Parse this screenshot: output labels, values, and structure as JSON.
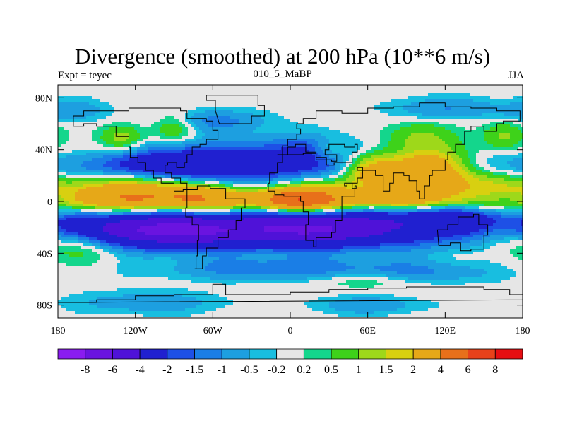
{
  "chart_data": {
    "type": "heatmap",
    "title": "Divergence (smoothed) at 200 hPa (10**6 m/s)",
    "subtitle_left": "Expt = teyec",
    "subtitle_center": "010_5_MaBP",
    "subtitle_right": "JJA",
    "x_axis": {
      "range": [
        -180,
        180
      ],
      "ticks": [
        {
          "value": -180,
          "label": "180"
        },
        {
          "value": -120,
          "label": "120W"
        },
        {
          "value": -60,
          "label": "60W"
        },
        {
          "value": 0,
          "label": "0"
        },
        {
          "value": 60,
          "label": "60E"
        },
        {
          "value": 120,
          "label": "120E"
        },
        {
          "value": 180,
          "label": "180"
        }
      ]
    },
    "y_axis": {
      "range": [
        -90,
        90
      ],
      "ticks": [
        {
          "value": 80,
          "label": "80N"
        },
        {
          "value": 40,
          "label": "40N"
        },
        {
          "value": 0,
          "label": "0"
        },
        {
          "value": -40,
          "label": "40S"
        },
        {
          "value": -80,
          "label": "80S"
        }
      ]
    },
    "colorbar": {
      "levels": [
        "-8",
        "-6",
        "-4",
        "-2",
        "-1.5",
        "-1",
        "-0.5",
        "-0.2",
        "0.2",
        "0.5",
        "1",
        "1.5",
        "2",
        "4",
        "6",
        "8"
      ],
      "colors": [
        "#8a1cf0",
        "#6a14e0",
        "#4f12d8",
        "#2020d0",
        "#1e50e6",
        "#1a7ee6",
        "#1d9fe0",
        "#18bee0",
        "#e6e6e6",
        "#14d68c",
        "#3ed21a",
        "#9ed81a",
        "#d8d010",
        "#e6a818",
        "#e8701a",
        "#e8421a",
        "#e60e12"
      ]
    },
    "fields": {
      "description_note": "",
      "features": [
        {
          "lon": -10,
          "lat": 0,
          "sx": 180,
          "sy": 6,
          "amp": 2.4
        },
        {
          "lon": -150,
          "lat": 8,
          "sx": 40,
          "sy": 10,
          "amp": 1.6
        },
        {
          "lon": -105,
          "lat": 10,
          "sx": 35,
          "sy": 9,
          "amp": 1.8
        },
        {
          "lon": -75,
          "lat": 4,
          "sx": 20,
          "sy": 8,
          "amp": 1.4
        },
        {
          "lon": 0,
          "lat": 2,
          "sx": 18,
          "sy": 7,
          "amp": 3.5
        },
        {
          "lon": 85,
          "lat": 20,
          "sx": 25,
          "sy": 12,
          "amp": 3.0
        },
        {
          "lon": 110,
          "lat": 25,
          "sx": 20,
          "sy": 10,
          "amp": 2.6
        },
        {
          "lon": 60,
          "lat": 25,
          "sx": 15,
          "sy": 8,
          "amp": 2.2
        },
        {
          "lon": 140,
          "lat": 15,
          "sx": 25,
          "sy": 10,
          "amp": 1.4
        },
        {
          "lon": 30,
          "lat": 5,
          "sx": 20,
          "sy": 10,
          "amp": 1.6
        },
        {
          "lon": -130,
          "lat": 48,
          "sx": 12,
          "sy": 8,
          "amp": 1.5
        },
        {
          "lon": 30,
          "lat": 40,
          "sx": 10,
          "sy": 6,
          "amp": 1.3
        },
        {
          "lon": 100,
          "lat": 50,
          "sx": 18,
          "sy": 8,
          "amp": 1.1
        },
        {
          "lon": 165,
          "lat": 50,
          "sx": 12,
          "sy": 8,
          "amp": 1.2
        },
        {
          "lon": -90,
          "lat": 58,
          "sx": 12,
          "sy": 8,
          "amp": 1.2
        },
        {
          "lon": -160,
          "lat": -30,
          "sx": 25,
          "sy": 10,
          "amp": 1.6
        },
        {
          "lon": 165,
          "lat": -25,
          "sx": 20,
          "sy": 10,
          "amp": 1.0
        },
        {
          "lon": 60,
          "lat": -60,
          "sx": 30,
          "sy": 5,
          "amp": 0.8
        },
        {
          "lon": -10,
          "lat": 25,
          "sx": 160,
          "sy": 8,
          "amp": -1.8
        },
        {
          "lon": -80,
          "lat": 30,
          "sx": 40,
          "sy": 10,
          "amp": -2.6
        },
        {
          "lon": 10,
          "lat": 40,
          "sx": 35,
          "sy": 8,
          "amp": -1.8
        },
        {
          "lon": -20,
          "lat": -22,
          "sx": 170,
          "sy": 10,
          "amp": -3.0
        },
        {
          "lon": -100,
          "lat": -22,
          "sx": 50,
          "sy": 9,
          "amp": -4.0
        },
        {
          "lon": 20,
          "lat": -20,
          "sx": 40,
          "sy": 10,
          "amp": -3.2
        },
        {
          "lon": 120,
          "lat": -12,
          "sx": 40,
          "sy": 7,
          "amp": -2.2
        },
        {
          "lon": 165,
          "lat": 2,
          "sx": 20,
          "sy": 5,
          "amp": -1.6
        },
        {
          "lon": -60,
          "lat": 62,
          "sx": 30,
          "sy": 6,
          "amp": -1.2
        },
        {
          "lon": -10,
          "lat": -52,
          "sx": 60,
          "sy": 6,
          "amp": -1.4
        },
        {
          "lon": 100,
          "lat": -55,
          "sx": 40,
          "sy": 6,
          "amp": -1.0
        },
        {
          "lon": -110,
          "lat": -78,
          "sx": 40,
          "sy": 6,
          "amp": -0.9
        },
        {
          "lon": 60,
          "lat": -80,
          "sx": 30,
          "sy": 5,
          "amp": -0.9
        },
        {
          "lon": 120,
          "lat": 72,
          "sx": 30,
          "sy": 6,
          "amp": -1.0
        },
        {
          "lon": -170,
          "lat": 70,
          "sx": 20,
          "sy": 6,
          "amp": -0.9
        }
      ]
    }
  }
}
